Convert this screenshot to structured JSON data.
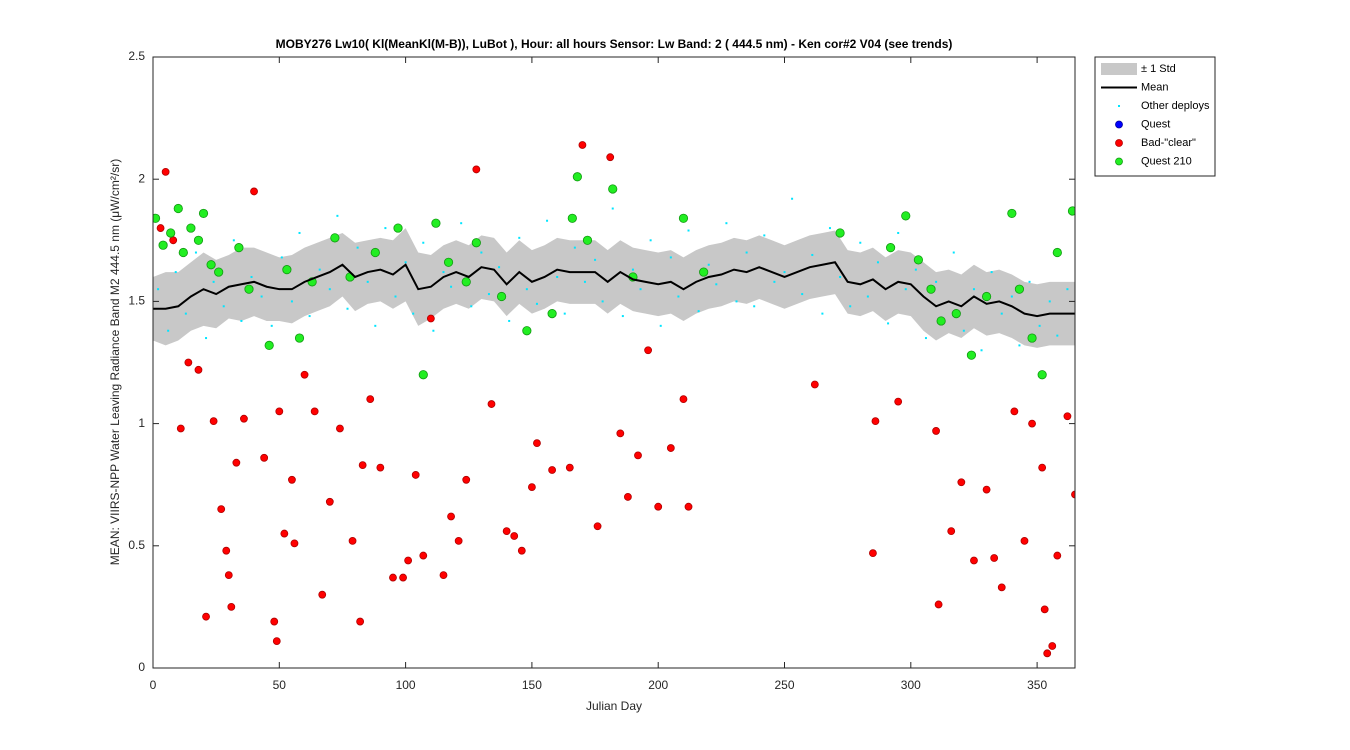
{
  "chart_data": {
    "type": "scatter",
    "title": "MOBY276   Lw10( Kl(MeanKl(M-B)), LuBot ),   Hour: all hours  Sensor: Lw Band: 2 ( 444.5 nm)  - Ken cor#2 V04 (see trends)",
    "xlabel": "Julian Day",
    "ylabel": "MEAN: VIIRS-NPP Water Leaving Radiance Band M2 444.5 nm (μW/cm²/sr)",
    "xlim": [
      0,
      365
    ],
    "ylim": [
      0,
      2.5
    ],
    "xticks": [
      0,
      50,
      100,
      150,
      200,
      250,
      300,
      350
    ],
    "yticks": [
      0,
      0.5,
      1,
      1.5,
      2,
      2.5
    ],
    "legend": "outside-upper-right",
    "series": [
      {
        "name": "± 1 Std",
        "kind": "band",
        "color": "#c8c8c8",
        "x": [
          0,
          5,
          10,
          15,
          20,
          25,
          30,
          35,
          40,
          45,
          50,
          55,
          60,
          65,
          70,
          75,
          80,
          85,
          90,
          95,
          100,
          105,
          110,
          115,
          120,
          125,
          130,
          135,
          140,
          145,
          150,
          155,
          160,
          165,
          170,
          175,
          180,
          185,
          190,
          195,
          200,
          205,
          210,
          215,
          220,
          225,
          230,
          235,
          240,
          245,
          250,
          255,
          260,
          265,
          270,
          275,
          280,
          285,
          290,
          295,
          300,
          305,
          310,
          315,
          320,
          325,
          330,
          335,
          340,
          345,
          350,
          355,
          360,
          365
        ],
        "upper": [
          1.6,
          1.62,
          1.62,
          1.66,
          1.7,
          1.67,
          1.69,
          1.72,
          1.72,
          1.7,
          1.68,
          1.69,
          1.72,
          1.74,
          1.76,
          1.78,
          1.74,
          1.75,
          1.76,
          1.75,
          1.8,
          1.7,
          1.69,
          1.73,
          1.75,
          1.73,
          1.77,
          1.76,
          1.7,
          1.75,
          1.71,
          1.73,
          1.76,
          1.75,
          1.75,
          1.75,
          1.71,
          1.75,
          1.72,
          1.71,
          1.7,
          1.71,
          1.68,
          1.71,
          1.73,
          1.74,
          1.76,
          1.75,
          1.77,
          1.75,
          1.73,
          1.75,
          1.77,
          1.78,
          1.79,
          1.71,
          1.7,
          1.72,
          1.68,
          1.71,
          1.7,
          1.66,
          1.62,
          1.63,
          1.61,
          1.65,
          1.62,
          1.63,
          1.61,
          1.58,
          1.57,
          1.58,
          1.58,
          1.58
        ],
        "lower": [
          1.34,
          1.32,
          1.34,
          1.38,
          1.4,
          1.39,
          1.43,
          1.42,
          1.44,
          1.42,
          1.42,
          1.41,
          1.44,
          1.46,
          1.48,
          1.52,
          1.46,
          1.49,
          1.5,
          1.47,
          1.5,
          1.4,
          1.43,
          1.47,
          1.49,
          1.47,
          1.51,
          1.5,
          1.44,
          1.49,
          1.45,
          1.47,
          1.5,
          1.49,
          1.49,
          1.49,
          1.45,
          1.49,
          1.46,
          1.45,
          1.44,
          1.45,
          1.42,
          1.45,
          1.47,
          1.48,
          1.5,
          1.49,
          1.51,
          1.49,
          1.47,
          1.49,
          1.51,
          1.52,
          1.53,
          1.45,
          1.44,
          1.46,
          1.42,
          1.45,
          1.44,
          1.38,
          1.34,
          1.37,
          1.35,
          1.39,
          1.36,
          1.37,
          1.35,
          1.32,
          1.31,
          1.32,
          1.32,
          1.32
        ]
      },
      {
        "name": "Mean",
        "kind": "line",
        "color": "#000000",
        "x": [
          0,
          5,
          10,
          15,
          20,
          25,
          30,
          35,
          40,
          45,
          50,
          55,
          60,
          65,
          70,
          75,
          80,
          85,
          90,
          95,
          100,
          105,
          110,
          115,
          120,
          125,
          130,
          135,
          140,
          145,
          150,
          155,
          160,
          165,
          170,
          175,
          180,
          185,
          190,
          195,
          200,
          205,
          210,
          215,
          220,
          225,
          230,
          235,
          240,
          245,
          250,
          255,
          260,
          265,
          270,
          275,
          280,
          285,
          290,
          295,
          300,
          305,
          310,
          315,
          320,
          325,
          330,
          335,
          340,
          345,
          350,
          355,
          360,
          365
        ],
        "values": [
          1.47,
          1.47,
          1.48,
          1.52,
          1.55,
          1.53,
          1.56,
          1.57,
          1.58,
          1.56,
          1.55,
          1.55,
          1.58,
          1.6,
          1.62,
          1.65,
          1.6,
          1.62,
          1.63,
          1.61,
          1.65,
          1.55,
          1.56,
          1.6,
          1.62,
          1.6,
          1.64,
          1.63,
          1.57,
          1.62,
          1.58,
          1.6,
          1.63,
          1.62,
          1.62,
          1.62,
          1.58,
          1.62,
          1.59,
          1.58,
          1.57,
          1.58,
          1.55,
          1.58,
          1.6,
          1.61,
          1.63,
          1.62,
          1.64,
          1.62,
          1.6,
          1.62,
          1.64,
          1.65,
          1.66,
          1.58,
          1.57,
          1.59,
          1.55,
          1.58,
          1.57,
          1.52,
          1.48,
          1.5,
          1.48,
          1.52,
          1.49,
          1.5,
          1.48,
          1.45,
          1.44,
          1.45,
          1.45,
          1.45
        ]
      },
      {
        "name": "Other deploys",
        "kind": "dots",
        "color": "#00e5ff",
        "x": [
          2,
          6,
          9,
          13,
          17,
          21,
          24,
          28,
          32,
          35,
          39,
          43,
          47,
          51,
          55,
          58,
          62,
          66,
          70,
          73,
          77,
          81,
          85,
          88,
          92,
          96,
          100,
          103,
          107,
          111,
          115,
          118,
          122,
          126,
          130,
          133,
          137,
          141,
          145,
          148,
          152,
          156,
          160,
          163,
          167,
          171,
          175,
          178,
          182,
          186,
          190,
          193,
          197,
          201,
          205,
          208,
          212,
          216,
          220,
          223,
          227,
          231,
          235,
          238,
          242,
          246,
          250,
          253,
          257,
          261,
          265,
          268,
          272,
          276,
          280,
          283,
          287,
          291,
          295,
          298,
          302,
          306,
          310,
          313,
          317,
          321,
          325,
          328,
          332,
          336,
          340,
          343,
          347,
          351,
          355,
          358,
          362
        ],
        "values": [
          1.55,
          1.38,
          1.62,
          1.45,
          1.7,
          1.35,
          1.58,
          1.48,
          1.75,
          1.42,
          1.6,
          1.52,
          1.4,
          1.68,
          1.5,
          1.78,
          1.44,
          1.63,
          1.55,
          1.85,
          1.47,
          1.72,
          1.58,
          1.4,
          1.8,
          1.52,
          1.66,
          1.45,
          1.74,
          1.38,
          1.62,
          1.56,
          1.82,
          1.48,
          1.7,
          1.53,
          1.64,
          1.42,
          1.76,
          1.55,
          1.49,
          1.83,
          1.6,
          1.45,
          1.72,
          1.58,
          1.67,
          1.5,
          1.88,
          1.44,
          1.63,
          1.55,
          1.75,
          1.4,
          1.68,
          1.52,
          1.79,
          1.46,
          1.65,
          1.57,
          1.82,
          1.5,
          1.7,
          1.48,
          1.77,
          1.58,
          1.62,
          1.92,
          1.53,
          1.69,
          1.45,
          1.8,
          1.6,
          1.48,
          1.74,
          1.52,
          1.66,
          1.41,
          1.78,
          1.55,
          1.63,
          1.35,
          1.58,
          1.42,
          1.7,
          1.38,
          1.55,
          1.3,
          1.62,
          1.45,
          1.52,
          1.32,
          1.58,
          1.4,
          1.5,
          1.36,
          1.55
        ]
      },
      {
        "name": "Quest",
        "kind": "circles",
        "color": "#0000ff",
        "x": [],
        "values": []
      },
      {
        "name": "Bad-\"clear\"",
        "kind": "circles",
        "color": "#ff0000",
        "x": [
          3,
          5,
          8,
          11,
          14,
          18,
          21,
          24,
          27,
          29,
          30,
          31,
          33,
          36,
          40,
          44,
          48,
          49,
          50,
          52,
          55,
          56,
          60,
          64,
          67,
          70,
          74,
          79,
          82,
          83,
          86,
          90,
          95,
          99,
          101,
          104,
          107,
          110,
          115,
          118,
          121,
          124,
          128,
          134,
          140,
          143,
          146,
          150,
          152,
          158,
          165,
          170,
          176,
          181,
          185,
          188,
          192,
          196,
          200,
          205,
          210,
          212,
          262,
          285,
          286,
          295,
          310,
          311,
          316,
          320,
          325,
          330,
          333,
          336,
          341,
          345,
          348,
          352,
          353,
          354,
          356,
          358,
          362,
          365
        ],
        "values": [
          1.8,
          2.03,
          1.75,
          0.98,
          1.25,
          1.22,
          0.21,
          1.01,
          0.65,
          0.48,
          0.38,
          0.25,
          0.84,
          1.02,
          1.95,
          0.86,
          0.19,
          0.11,
          1.05,
          0.55,
          0.77,
          0.51,
          1.2,
          1.05,
          0.3,
          0.68,
          0.98,
          0.52,
          0.19,
          0.83,
          1.1,
          0.82,
          0.37,
          0.37,
          0.44,
          0.79,
          0.46,
          1.43,
          0.38,
          0.62,
          0.52,
          0.77,
          2.04,
          1.08,
          0.56,
          0.54,
          0.48,
          0.74,
          0.92,
          0.81,
          0.82,
          2.14,
          0.58,
          2.09,
          0.96,
          0.7,
          0.87,
          1.3,
          0.66,
          0.9,
          1.1,
          0.66,
          1.16,
          0.47,
          1.01,
          1.09,
          0.97,
          0.26,
          0.56,
          0.76,
          0.44,
          0.73,
          0.45,
          0.33,
          1.05,
          0.52,
          1.0,
          0.82,
          0.24,
          0.06,
          0.09,
          0.46,
          1.03,
          0.71
        ]
      },
      {
        "name": "Quest 210",
        "kind": "circles",
        "color": "#22ee22",
        "x": [
          1,
          4,
          7,
          10,
          12,
          15,
          18,
          20,
          23,
          26,
          34,
          38,
          46,
          53,
          58,
          63,
          72,
          78,
          88,
          97,
          107,
          112,
          117,
          124,
          128,
          138,
          148,
          158,
          166,
          168,
          172,
          182,
          190,
          210,
          218,
          272,
          292,
          298,
          303,
          308,
          312,
          318,
          324,
          330,
          340,
          343,
          348,
          352,
          358,
          364
        ],
        "values": [
          1.84,
          1.73,
          1.78,
          1.88,
          1.7,
          1.8,
          1.75,
          1.86,
          1.65,
          1.62,
          1.72,
          1.55,
          1.32,
          1.63,
          1.35,
          1.58,
          1.76,
          1.6,
          1.7,
          1.8,
          1.2,
          1.82,
          1.66,
          1.58,
          1.74,
          1.52,
          1.38,
          1.45,
          1.84,
          2.01,
          1.75,
          1.96,
          1.6,
          1.84,
          1.62,
          1.78,
          1.72,
          1.85,
          1.67,
          1.55,
          1.42,
          1.45,
          1.28,
          1.52,
          1.86,
          1.55,
          1.35,
          1.2,
          1.7,
          1.87
        ]
      }
    ]
  }
}
